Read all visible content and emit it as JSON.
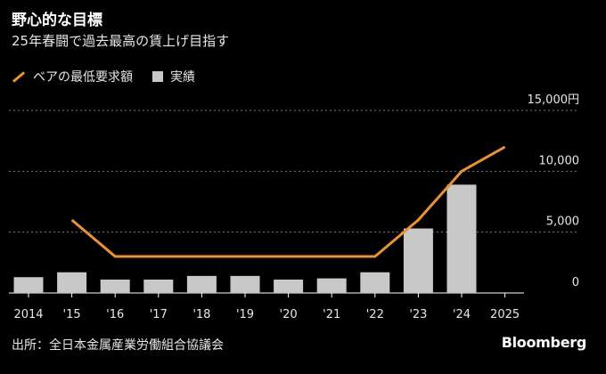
{
  "title": "野心的な目標",
  "subtitle": "25年春闘で過去最高の賃上げ目指す",
  "legend": {
    "line_label": "ベアの最低要求額",
    "bar_label": "実績"
  },
  "source": "出所：全日本金属産業労働組合協議会",
  "brand": "Bloomberg",
  "colors": {
    "line": "#e8923a",
    "bar": "#c8c8c8",
    "grid": "#7a7a7a",
    "axis_text": "#e6e6e6"
  },
  "chart_data": {
    "type": "bar+line",
    "categories": [
      "2014",
      "'15",
      "'16",
      "'17",
      "'18",
      "'19",
      "'20",
      "'21",
      "'22",
      "'23",
      "'24",
      "2025"
    ],
    "series": [
      {
        "name": "実績",
        "type": "bar",
        "values": [
          1300,
          1700,
          1100,
          1100,
          1400,
          1400,
          1100,
          1200,
          1700,
          5300,
          8900,
          null
        ]
      },
      {
        "name": "ベアの最低要求額",
        "type": "line",
        "values": [
          null,
          6000,
          3000,
          3000,
          3000,
          3000,
          3000,
          3000,
          3000,
          6000,
          10000,
          12000
        ]
      }
    ],
    "y_ticks": [
      "0",
      "5,000",
      "10,000",
      "15,000円"
    ],
    "y_tick_values": [
      0,
      5000,
      10000,
      15000
    ],
    "ylim": [
      0,
      15000
    ],
    "grid": true
  }
}
